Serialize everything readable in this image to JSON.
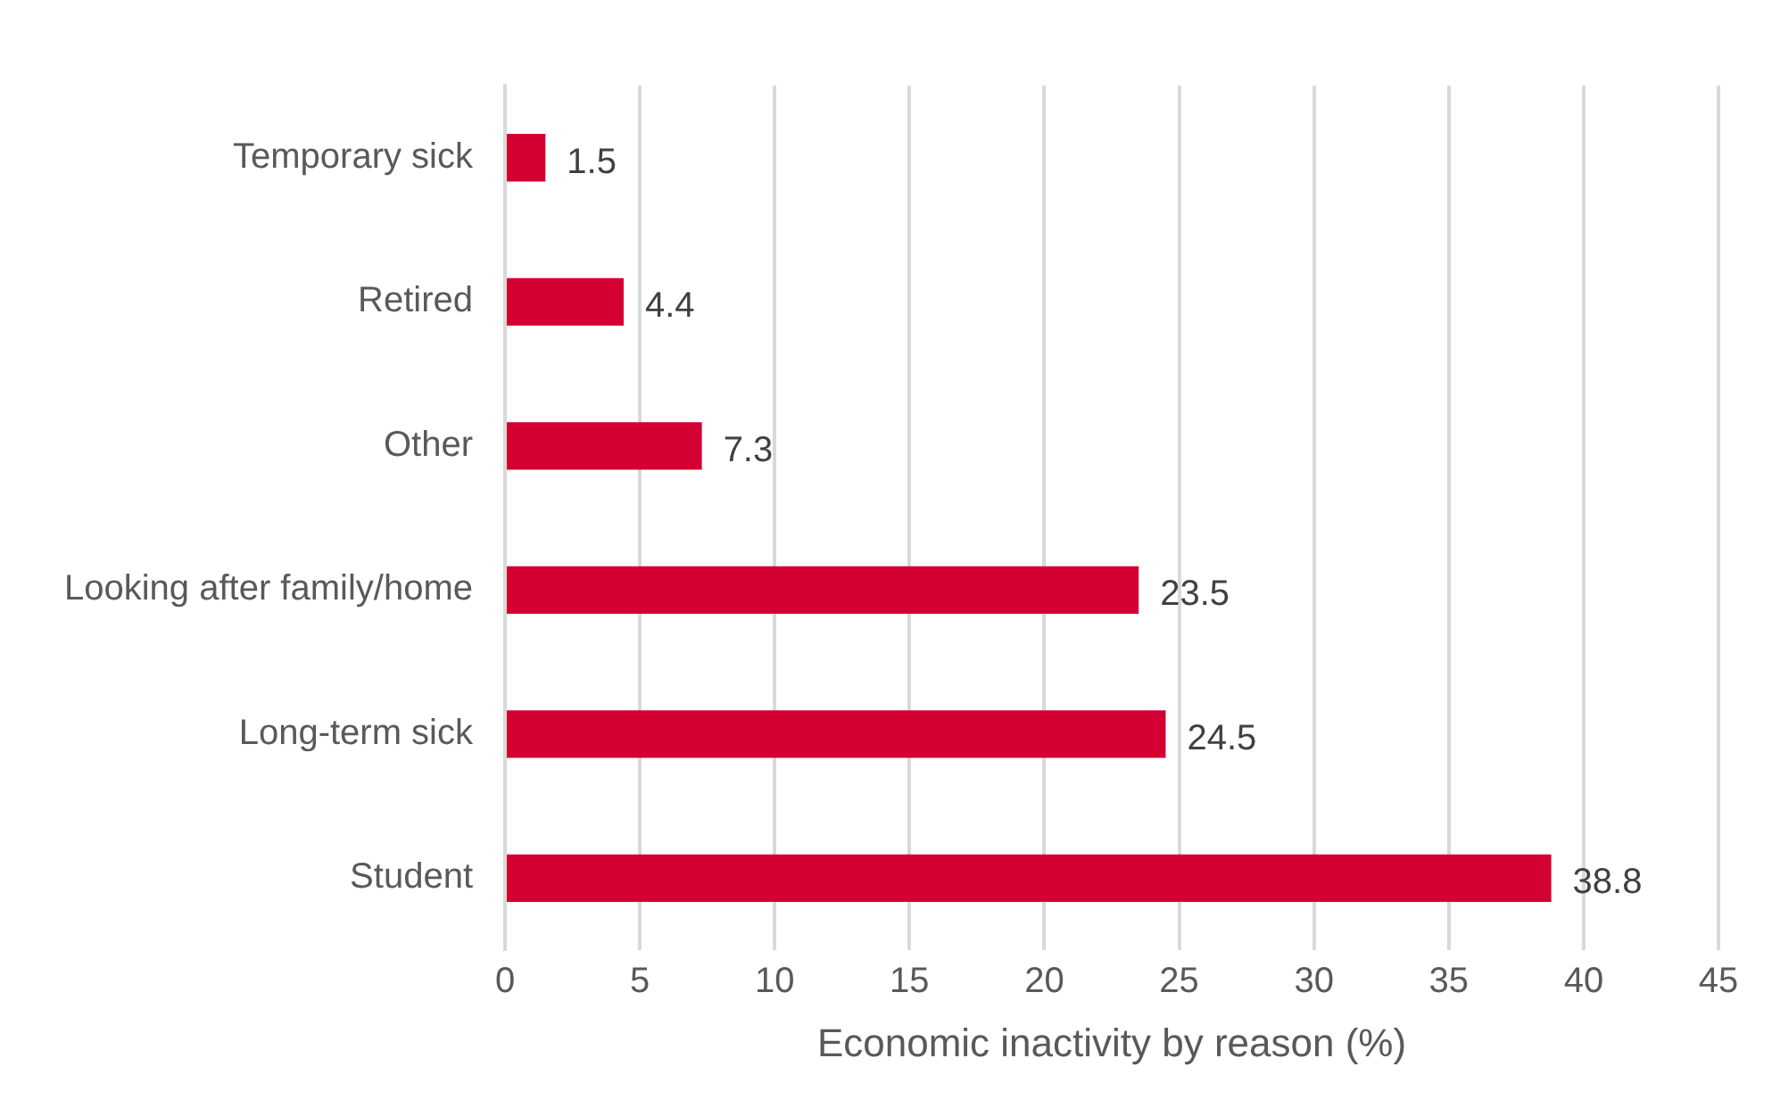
{
  "chart_data": {
    "type": "bar",
    "orientation": "horizontal",
    "xlabel": "Economic inactivity by reason (%)",
    "categories": [
      "Temporary sick",
      "Retired",
      "Other",
      "Looking after family/home",
      "Long-term sick",
      "Student"
    ],
    "values": [
      1.5,
      4.4,
      7.3,
      23.5,
      24.5,
      38.8
    ],
    "color": "#d50032",
    "xlim": [
      0,
      45
    ],
    "xticks": [
      0,
      5,
      10,
      15,
      20,
      25,
      30,
      35,
      40,
      45
    ],
    "grid": "x",
    "data_labels": true,
    "legend": false
  }
}
